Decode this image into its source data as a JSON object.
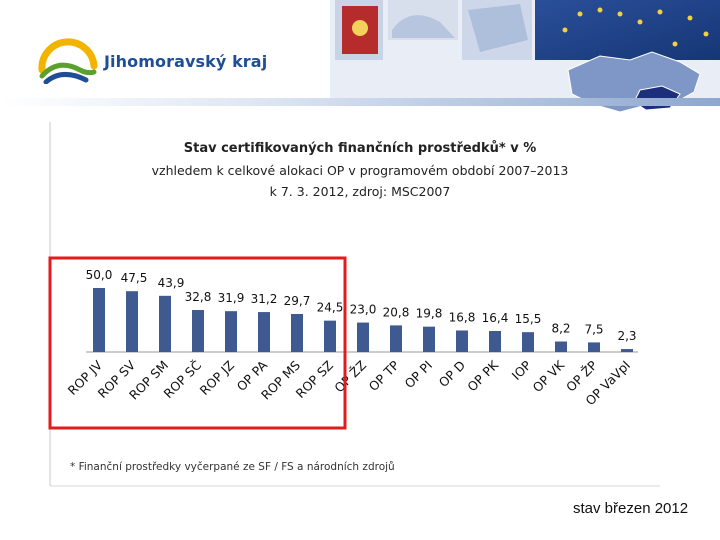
{
  "header": {
    "brand": "Jihomoravský kraj"
  },
  "colors": {
    "bar": "#3f5a91",
    "highlight_box": "#e11c1c",
    "banner_blue": "#1f4e96",
    "logo_yellow": "#f2b400",
    "logo_green": "#5aa02c"
  },
  "chart_data": {
    "type": "bar",
    "title": "Stav certifikovaných finančních prostředků* v %",
    "subtitle_1": "vzhledem k celkové alokaci OP v programovém období 2007–2013",
    "subtitle_2": "k 7. 3. 2012, zdroj: MSC2007",
    "categories": [
      "ROP JV",
      "ROP SV",
      "ROP SM",
      "ROP SČ",
      "ROP JZ",
      "OP PA",
      "ROP MS",
      "ROP SZ",
      "OP ŽZ",
      "OP TP",
      "OP PI",
      "OP D",
      "OP PK",
      "IOP",
      "OP VK",
      "OP ŽP",
      "OP VaVpI"
    ],
    "values": [
      50.0,
      47.5,
      43.9,
      32.8,
      31.9,
      31.2,
      29.7,
      24.5,
      23.0,
      20.8,
      19.8,
      16.8,
      16.4,
      15.5,
      8.2,
      7.5,
      2.3
    ],
    "value_labels": [
      "50,0",
      "47,5",
      "43,9",
      "32,8",
      "31,9",
      "31,2",
      "29,7",
      "24,5",
      "23,0",
      "20,8",
      "19,8",
      "16,8",
      "16,4",
      "15,5",
      "8,2",
      "7,5",
      "2,3"
    ],
    "ylim": [
      0,
      50
    ],
    "highlighted_categories": [
      "ROP JV",
      "ROP SV",
      "ROP SM",
      "ROP SČ",
      "ROP JZ",
      "OP PA",
      "ROP MS",
      "ROP SZ"
    ],
    "footnote": "* Finanční prostředky vyčerpané ze SF / FS a národních zdrojů",
    "grid": false,
    "legend": "none"
  },
  "footer": {
    "note": "stav březen 2012"
  }
}
